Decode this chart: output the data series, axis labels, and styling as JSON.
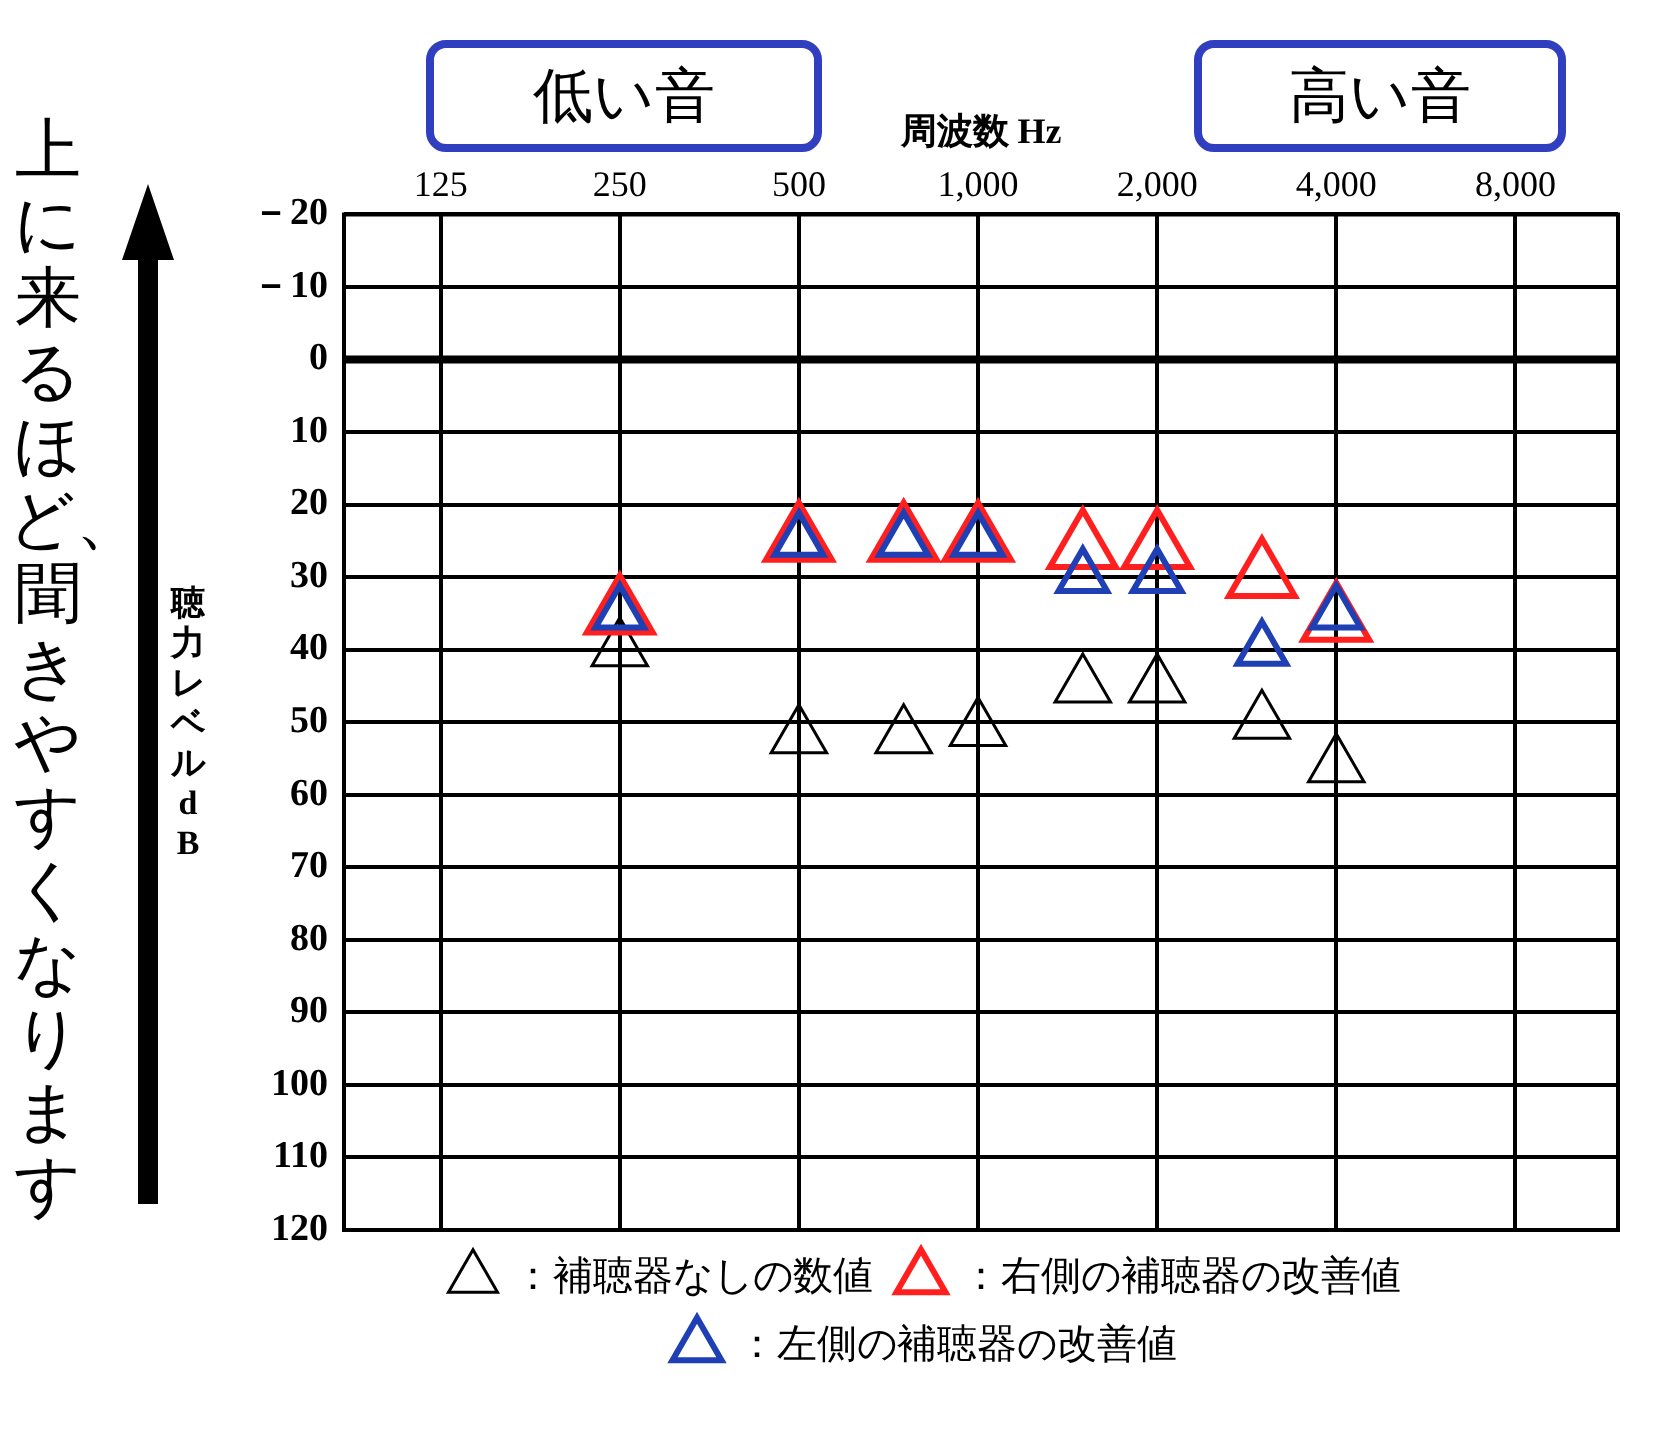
{
  "chart_data": {
    "type": "scatter",
    "xlabel": "周波数 Hz",
    "ylabel": "聴力レベル dB",
    "annotations": [
      "低い音",
      "高い音",
      "上に来るほど、聞きやすくなります"
    ],
    "series": [
      {
        "name": "：補聴器なしの数値",
        "color": "#000000",
        "x": [
          250,
          500,
          750,
          1000,
          1500,
          2000,
          3000,
          4000
        ],
        "values": [
          40,
          52,
          52,
          51,
          45,
          45,
          50,
          56
        ]
      },
      {
        "name": "：右側の補聴器の改善値",
        "color": "#ff1f1f",
        "x": [
          250,
          500,
          750,
          1000,
          1500,
          2000,
          3000,
          4000
        ],
        "values": [
          35,
          25,
          25,
          25,
          26,
          26,
          30,
          36
        ]
      },
      {
        "name": "：左側の補聴器の改善値",
        "color": "#1f3fb4",
        "x": [
          250,
          500,
          750,
          1000,
          1500,
          2000,
          3000,
          4000
        ],
        "values": [
          35,
          25,
          25,
          25,
          30,
          30,
          40,
          35
        ]
      }
    ],
    "log": "x",
    "xlim": [
      86,
      11900
    ],
    "xticks": [
      125,
      250,
      500,
      {
        "value": 1000,
        "label": "1,000"
      },
      {
        "value": 2000,
        "label": "2,000"
      },
      {
        "value": 4000,
        "label": "4,000"
      },
      {
        "value": 8000,
        "label": "8,000"
      }
    ],
    "ylim": [
      120,
      -20
    ],
    "yticks": [
      {
        "value": -20,
        "label": "－20"
      },
      {
        "value": -10,
        "label": "－10"
      },
      0,
      10,
      20,
      30,
      40,
      50,
      60,
      70,
      80,
      90,
      100,
      110,
      120
    ],
    "ref_lines": [
      {
        "axis": "y",
        "value": 0,
        "color": "#000000"
      }
    ],
    "grid": true,
    "legend": "bottom",
    "marker": "triangle"
  }
}
